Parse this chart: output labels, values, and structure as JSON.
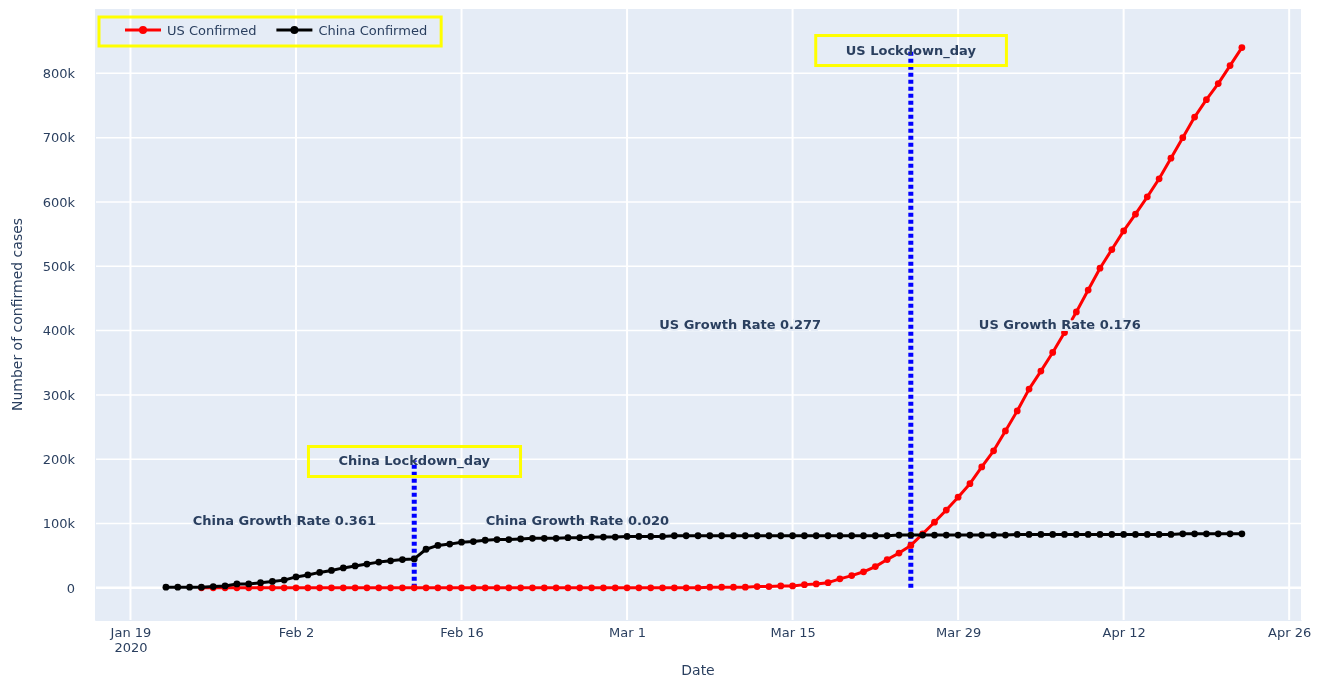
{
  "chart_data": {
    "type": "line",
    "xlabel": "Date",
    "ylabel": "Number of confirmed cases",
    "x": [
      "2020-01-22",
      "2020-01-23",
      "2020-01-24",
      "2020-01-25",
      "2020-01-26",
      "2020-01-27",
      "2020-01-28",
      "2020-01-29",
      "2020-01-30",
      "2020-01-31",
      "2020-02-01",
      "2020-02-02",
      "2020-02-03",
      "2020-02-04",
      "2020-02-05",
      "2020-02-06",
      "2020-02-07",
      "2020-02-08",
      "2020-02-09",
      "2020-02-10",
      "2020-02-11",
      "2020-02-12",
      "2020-02-13",
      "2020-02-14",
      "2020-02-15",
      "2020-02-16",
      "2020-02-17",
      "2020-02-18",
      "2020-02-19",
      "2020-02-20",
      "2020-02-21",
      "2020-02-22",
      "2020-02-23",
      "2020-02-24",
      "2020-02-25",
      "2020-02-26",
      "2020-02-27",
      "2020-02-28",
      "2020-02-29",
      "2020-03-01",
      "2020-03-02",
      "2020-03-03",
      "2020-03-04",
      "2020-03-05",
      "2020-03-06",
      "2020-03-07",
      "2020-03-08",
      "2020-03-09",
      "2020-03-10",
      "2020-03-11",
      "2020-03-12",
      "2020-03-13",
      "2020-03-14",
      "2020-03-15",
      "2020-03-16",
      "2020-03-17",
      "2020-03-18",
      "2020-03-19",
      "2020-03-20",
      "2020-03-21",
      "2020-03-22",
      "2020-03-23",
      "2020-03-24",
      "2020-03-25",
      "2020-03-26",
      "2020-03-27",
      "2020-03-28",
      "2020-03-29",
      "2020-03-30",
      "2020-03-31",
      "2020-04-01",
      "2020-04-02",
      "2020-04-03",
      "2020-04-04",
      "2020-04-05",
      "2020-04-06",
      "2020-04-07",
      "2020-04-08",
      "2020-04-09",
      "2020-04-10",
      "2020-04-11",
      "2020-04-12",
      "2020-04-13",
      "2020-04-14",
      "2020-04-15",
      "2020-04-16",
      "2020-04-17",
      "2020-04-18",
      "2020-04-19",
      "2020-04-20",
      "2020-04-21",
      "2020-04-22"
    ],
    "series": [
      {
        "name": "US Confirmed",
        "color": "#ff0000",
        "values": [
          null,
          null,
          null,
          0,
          0,
          0,
          0,
          0,
          0,
          0,
          0,
          0,
          0,
          0,
          0,
          0,
          0,
          0,
          0,
          0,
          0,
          0,
          0,
          0,
          0,
          0,
          0,
          0,
          0,
          0,
          0,
          0,
          0,
          0,
          0,
          0,
          0,
          0,
          0,
          0,
          0,
          0,
          0,
          0,
          0,
          0,
          1000,
          1000,
          1000,
          1000,
          2000,
          2000,
          3000,
          3000,
          5000,
          6000,
          8000,
          14000,
          19000,
          25000,
          33000,
          44000,
          54000,
          66000,
          84000,
          102000,
          121000,
          141000,
          162000,
          188000,
          213000,
          244000,
          275000,
          309000,
          337000,
          366000,
          397000,
          429000,
          463000,
          497000,
          526000,
          555000,
          581000,
          608000,
          636000,
          668000,
          700000,
          732000,
          759000,
          784000,
          812000,
          840000
        ]
      },
      {
        "name": "China Confirmed",
        "color": "#000000",
        "values": [
          1000,
          1000,
          1000,
          1000,
          2000,
          3000,
          6000,
          6000,
          8000,
          10000,
          12000,
          17000,
          20000,
          24000,
          27000,
          31000,
          34000,
          37000,
          40000,
          42000,
          44000,
          45000,
          60000,
          66000,
          68000,
          71000,
          72000,
          74000,
          75000,
          75000,
          76000,
          77000,
          77000,
          77000,
          78000,
          78000,
          79000,
          79000,
          79000,
          80000,
          80000,
          80000,
          80000,
          81000,
          81000,
          81000,
          81000,
          81000,
          81000,
          81000,
          81000,
          81000,
          81000,
          81000,
          81000,
          81000,
          81000,
          81000,
          81000,
          81000,
          81000,
          81000,
          82000,
          82000,
          82000,
          82000,
          82000,
          82000,
          82000,
          82000,
          82000,
          82000,
          83000,
          83000,
          83000,
          83000,
          83000,
          83000,
          83000,
          83000,
          83000,
          83000,
          83000,
          83000,
          83000,
          83000,
          84000,
          84000,
          84000,
          84000,
          84000,
          84000
        ]
      }
    ],
    "xlim": [
      "2020-01-16",
      "2020-04-27"
    ],
    "xticks": [
      {
        "value": "2020-01-19",
        "label": "Jan 19\n2020"
      },
      {
        "value": "2020-02-02",
        "label": "Feb 2"
      },
      {
        "value": "2020-02-16",
        "label": "Feb 16"
      },
      {
        "value": "2020-03-01",
        "label": "Mar 1"
      },
      {
        "value": "2020-03-15",
        "label": "Mar 15"
      },
      {
        "value": "2020-03-29",
        "label": "Mar 29"
      },
      {
        "value": "2020-04-12",
        "label": "Apr 12"
      },
      {
        "value": "2020-04-26",
        "label": "Apr 26"
      }
    ],
    "ylim": [
      -50000,
      900000
    ],
    "yticks": [
      0,
      {
        "value": 100000,
        "label": "100k"
      },
      {
        "value": 200000,
        "label": "200k"
      },
      {
        "value": 300000,
        "label": "300k"
      },
      {
        "value": 400000,
        "label": "400k"
      },
      {
        "value": 500000,
        "label": "500k"
      },
      {
        "value": 600000,
        "label": "600k"
      },
      {
        "value": 700000,
        "label": "700k"
      },
      {
        "value": 800000,
        "label": "800k"
      }
    ],
    "ref_lines": [
      {
        "axis": "x",
        "value": "2020-02-12",
        "label": "China Lockdown_day",
        "color": "#0000ff",
        "line_style": "dotted"
      },
      {
        "axis": "x",
        "value": "2020-03-25",
        "label": "US Lockdown_day",
        "color": "#0000ff",
        "line_style": "dotted"
      }
    ],
    "annotations": [
      "China Growth Rate 0.361",
      "China Growth Rate 0.020",
      "US Growth Rate 0.277",
      "US Growth Rate 0.176"
    ],
    "grid": true,
    "legend": "top left",
    "marker": "circle",
    "line_style": "solid"
  }
}
